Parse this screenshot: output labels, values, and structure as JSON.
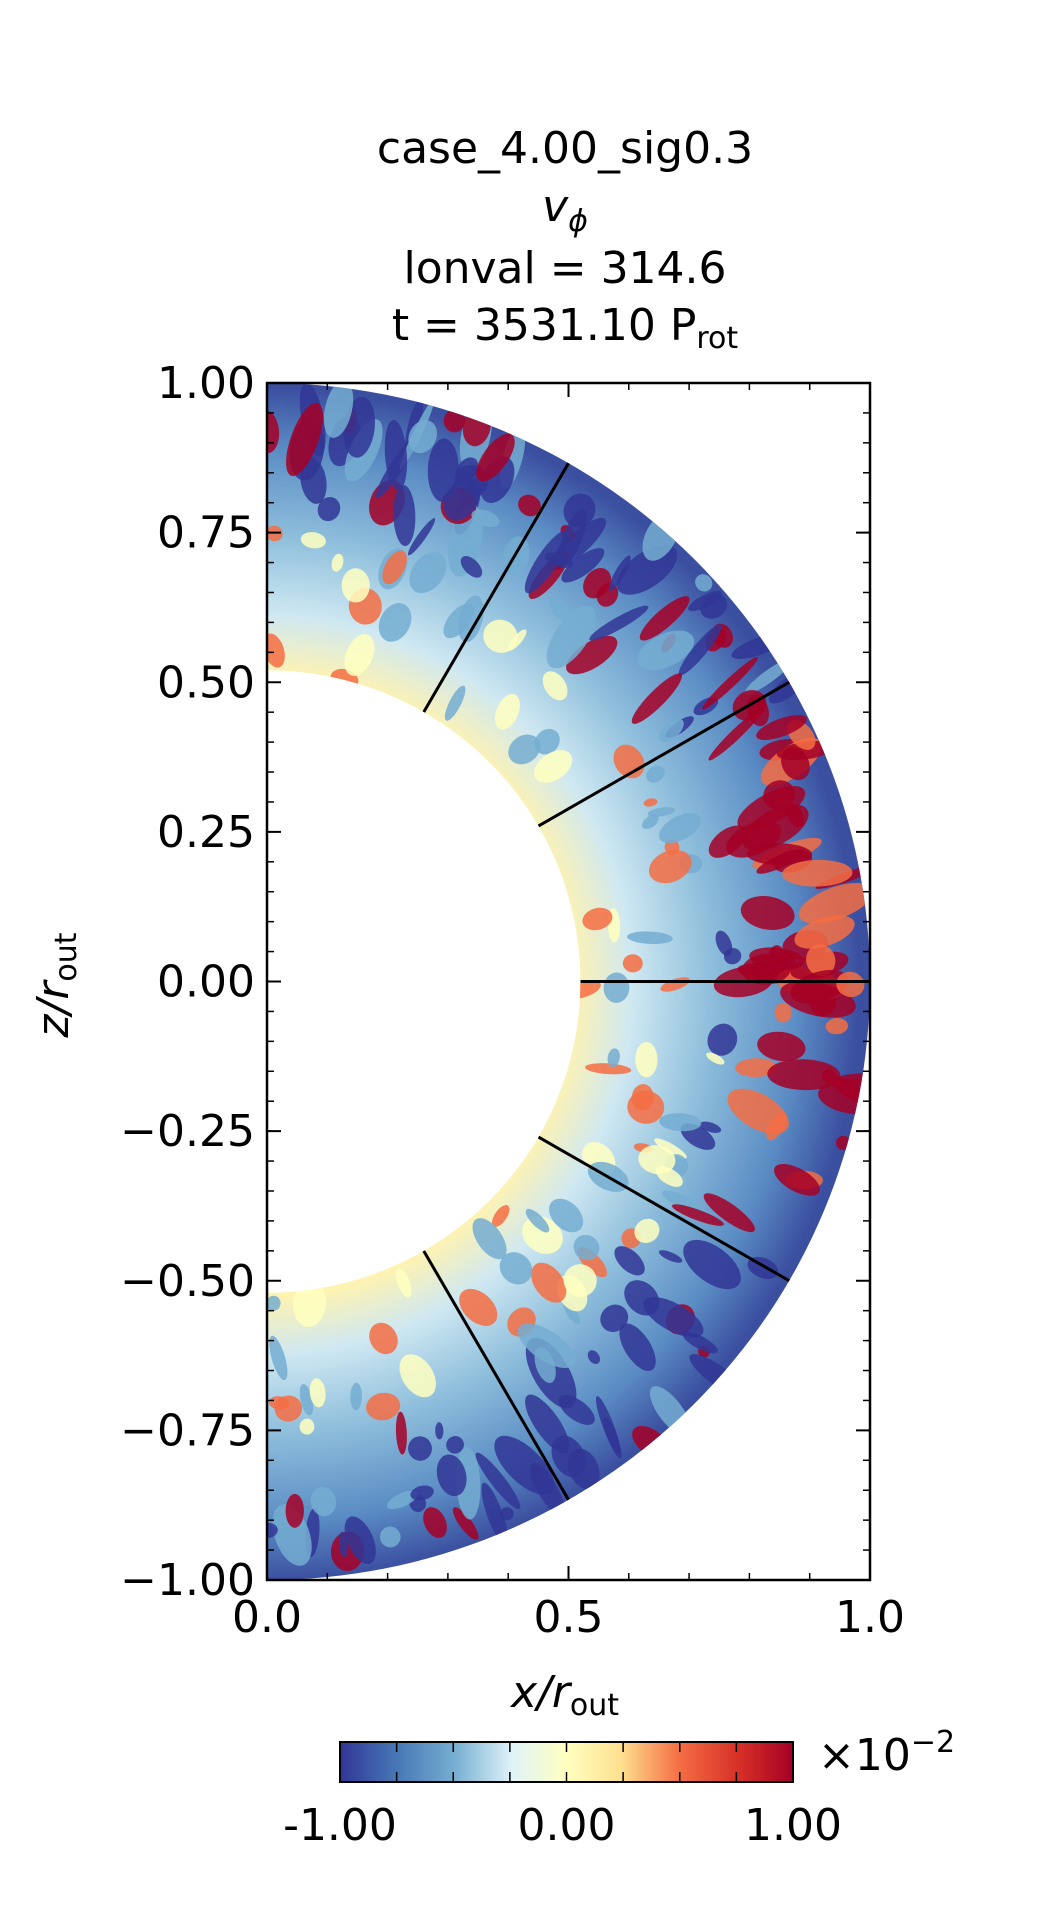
{
  "chart_data": {
    "type": "heatmap",
    "title_lines": [
      "case_4.00_sig0.3",
      "lonval = 314.6"
    ],
    "quantity_base": "v",
    "quantity_sub": "ϕ",
    "time_prefix": "t = 3531.10 P",
    "time_sub": "rot",
    "xlabel_base": "x/r",
    "xlabel_sub": "out",
    "ylabel_base": "z/r",
    "ylabel_sub": "out",
    "xlim": [
      0.0,
      1.0
    ],
    "ylim": [
      -1.0,
      1.0
    ],
    "xticks": [
      "0.0",
      "0.5",
      "1.0"
    ],
    "yticks": [
      "1.00",
      "0.75",
      "0.50",
      "0.25",
      "0.00",
      "−0.25",
      "−0.50",
      "−0.75",
      "−1.00"
    ],
    "grid": false,
    "domain": "meridional half-annulus",
    "r_inner": 0.52,
    "r_outer": 1.0,
    "latitude_lines_deg": [
      60,
      30,
      0,
      -30,
      -60
    ],
    "colormap": "RdYlBu_r",
    "colorbar": {
      "min": -1.0,
      "max": 1.0,
      "tick_labels": [
        "-1.00",
        "0.00",
        "1.00"
      ],
      "multiplier_base": "×10",
      "multiplier_exp": "−2"
    },
    "colors": {
      "strong_negative": "#313695",
      "negative": "#74add1",
      "weak": "#ffffbf",
      "positive": "#f46d43",
      "strong_positive": "#a50026"
    }
  }
}
